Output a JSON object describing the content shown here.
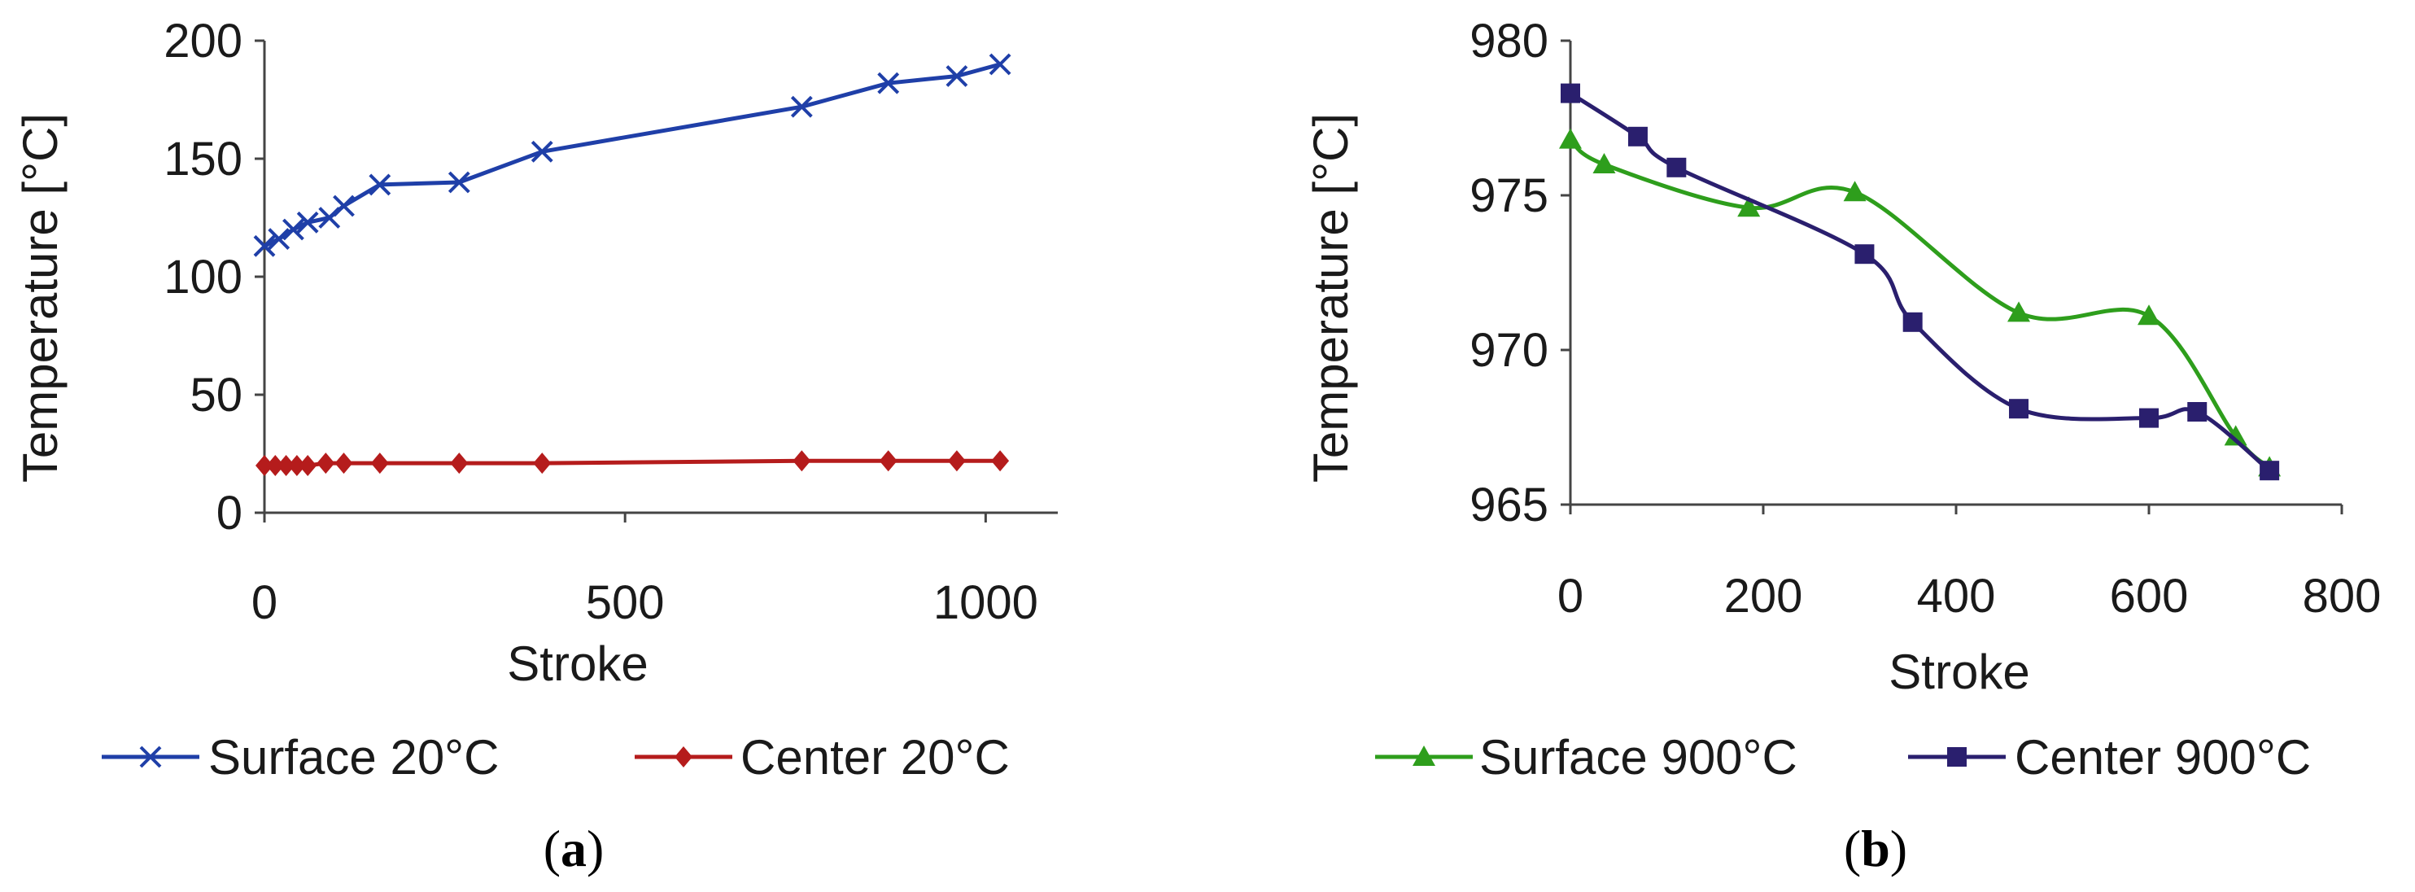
{
  "chart_data": [
    {
      "type": "line",
      "caption_letter": "a",
      "xlabel": "Stroke",
      "ylabel": "Temperature [°C]",
      "xlim": [
        0,
        1100
      ],
      "ylim": [
        0,
        200
      ],
      "xticks": [
        0,
        500,
        1000
      ],
      "yticks": [
        0,
        50,
        100,
        150,
        200
      ],
      "grid": false,
      "legend_position": "bottom",
      "series": [
        {
          "name": "Surface 20°C",
          "color": "#1f3fa8",
          "marker": "x",
          "smooth": false,
          "x": [
            0,
            20,
            40,
            60,
            90,
            110,
            160,
            270,
            385,
            745,
            865,
            960,
            1020
          ],
          "y": [
            113,
            116,
            120,
            123,
            125,
            130,
            139,
            140,
            153,
            172,
            182,
            185,
            190
          ]
        },
        {
          "name": "Center 20°C",
          "color": "#b51c1c",
          "marker": "diamond",
          "smooth": false,
          "x": [
            0,
            15,
            30,
            45,
            60,
            85,
            110,
            160,
            270,
            385,
            745,
            865,
            960,
            1020
          ],
          "y": [
            20,
            20,
            20,
            20,
            20,
            21,
            21,
            21,
            21,
            21,
            22,
            22,
            22,
            22
          ]
        }
      ]
    },
    {
      "type": "line",
      "caption_letter": "b",
      "xlabel": "Stroke",
      "ylabel": "Temperature [°C]",
      "xlim": [
        0,
        800
      ],
      "ylim": [
        965,
        980
      ],
      "xticks": [
        0,
        200,
        400,
        600,
        800
      ],
      "yticks": [
        965,
        970,
        975,
        980
      ],
      "grid": false,
      "legend_position": "bottom",
      "series": [
        {
          "name": "Surface 900°C",
          "color": "#2e9e1c",
          "marker": "triangle",
          "smooth": true,
          "x": [
            0,
            35,
            185,
            295,
            465,
            600,
            690,
            725
          ],
          "y": [
            976.8,
            976.0,
            974.6,
            975.1,
            971.2,
            971.1,
            967.2,
            966.2
          ]
        },
        {
          "name": "Center 900°C",
          "color": "#2a1f6e",
          "marker": "square",
          "smooth": true,
          "x": [
            0,
            70,
            110,
            305,
            355,
            465,
            600,
            650,
            725
          ],
          "y": [
            978.3,
            976.9,
            975.9,
            973.1,
            970.9,
            968.1,
            967.8,
            968.0,
            966.1
          ]
        }
      ]
    }
  ]
}
